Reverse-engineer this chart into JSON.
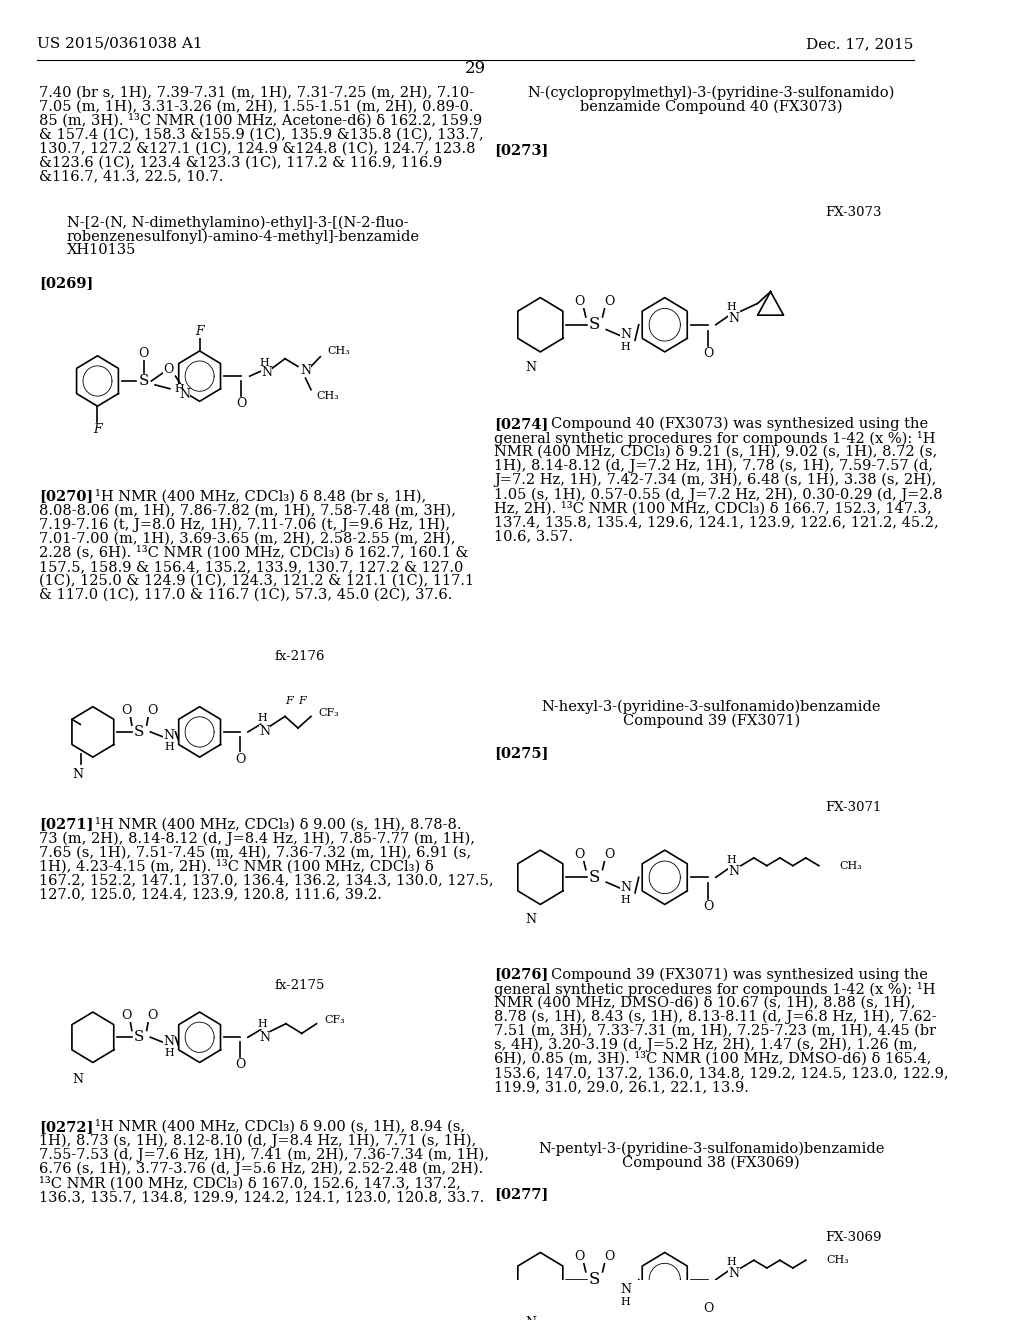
{
  "header_left": "US 2015/0361038 A1",
  "header_right": "Dec. 17, 2015",
  "page_number": "29",
  "background": "#ffffff",
  "top_left_text": "7.40 (br s, 1H), 7.39-7.31 (m, 1H), 7.31-7.25 (m, 2H), 7.10-\n7.05 (m, 1H), 3.31-3.26 (m, 2H), 1.55-1.51 (m, 2H), 0.89-0.\n85 (m, 3H). ¹³C NMR (100 MHz, Acetone-d6) δ 162.2, 159.9\n& 157.4 (1C), 158.3 &155.9 (1C), 135.9 &135.8 (1C), 133.7,\n130.7, 127.2 &127.1 (1C), 124.9 &124.8 (1C), 124.7, 123.8\n&123.6 (1C), 123.4 &123.3 (1C), 117.2 & 116.9, 116.9\n&116.7, 41.3, 22.5, 10.7.",
  "comp_title_0269": "N-[2-(N, N-dimethylamino)-ethyl]-3-[(N-2-fluo-\nrobenzenesulfonyl)-amino-4-methyl]-benzamide\nXH10135",
  "ref_0269": "[0269]",
  "ref_0270": "[0270]",
  "text_0270": "¹H NMR (400 MHz, CDCl₃) δ 8.48 (br s, 1H),\n8.08-8.06 (m, 1H), 7.86-7.82 (m, 1H), 7.58-7.48 (m, 3H),\n7.19-7.16 (t, J=8.0 Hz, 1H), 7.11-7.06 (t, J=9.6 Hz, 1H),\n7.01-7.00 (m, 1H), 3.69-3.65 (m, 2H), 2.58-2.55 (m, 2H),\n2.28 (s, 6H). ¹³C NMR (100 MHz, CDCl₃) δ 162.7, 160.1 &\n157.5, 158.9 & 156.4, 135.2, 133.9, 130.7, 127.2 & 127.0\n(1C), 125.0 & 124.9 (1C), 124.3, 121.2 & 121.1 (1C), 117.1\n& 117.0 (1C), 117.0 & 116.7 (1C), 57.3, 45.0 (2C), 37.6.",
  "label_fx2176": "fx-2176",
  "ref_0271": "[0271]",
  "text_0271": "¹H NMR (400 MHz, CDCl₃) δ 9.00 (s, 1H), 8.78-8.\n73 (m, 2H), 8.14-8.12 (d, J=8.4 Hz, 1H), 7.85-7.77 (m, 1H),\n7.65 (s, 1H), 7.51-7.45 (m, 4H), 7.36-7.32 (m, 1H), 6.91 (s,\n1H), 4.23-4.15 (m, 2H). ¹³C NMR (100 MHz, CDCl₃) δ\n167.2, 152.2, 147.1, 137.0, 136.4, 136.2, 134.3, 130.0, 127.5,\n127.0, 125.0, 124.4, 123.9, 120.8, 111.6, 39.2.",
  "label_fx2175": "fx-2175",
  "ref_0272": "[0272]",
  "text_0272": "¹H NMR (400 MHz, CDCl₃) δ 9.00 (s, 1H), 8.94 (s,\n1H), 8.73 (s, 1H), 8.12-8.10 (d, J=8.4 Hz, 1H), 7.71 (s, 1H),\n7.55-7.53 (d, J=7.6 Hz, 1H), 7.41 (m, 2H), 7.36-7.34 (m, 1H),\n6.76 (s, 1H), 3.77-3.76 (d, J=5.6 Hz, 2H), 2.52-2.48 (m, 2H).\n¹³C NMR (100 MHz, CDCl₃) δ 167.0, 152.6, 147.3, 137.2,\n136.3, 135.7, 134.8, 129.9, 124.2, 124.1, 123.0, 120.8, 33.7.",
  "comp_title_0273": "N-(cyclopropylmethyl)-3-(pyridine-3-sulfonamido)\nbenzamide Compound 40 (FX3073)",
  "ref_0273": "[0273]",
  "label_fx3073": "FX-3073",
  "ref_0274": "[0274]",
  "text_0274": "Compound 40 (FX3073) was synthesized using the\ngeneral synthetic procedures for compounds 1-42 (x %): ¹H\nNMR (400 MHz, CDCl₃) δ 9.21 (s, 1H), 9.02 (s, 1H), 8.72 (s,\n1H), 8.14-8.12 (d, J=7.2 Hz, 1H), 7.78 (s, 1H), 7.59-7.57 (d,\nJ=7.2 Hz, 1H), 7.42-7.34 (m, 3H), 6.48 (s, 1H), 3.38 (s, 2H),\n1.05 (s, 1H), 0.57-0.55 (d, J=7.2 Hz, 2H), 0.30-0.29 (d, J=2.8\nHz, 2H). ¹³C NMR (100 MHz, CDCl₃) δ 166.7, 152.3, 147.3,\n137.4, 135.8, 135.4, 129.6, 124.1, 123.9, 122.6, 121.2, 45.2,\n10.6, 3.57.",
  "comp_title_0275": "N-hexyl-3-(pyridine-3-sulfonamido)benzamide\nCompound 39 (FX3071)",
  "ref_0275": "[0275]",
  "label_fx3071": "FX-3071",
  "ref_0276": "[0276]",
  "text_0276": "Compound 39 (FX3071) was synthesized using the\ngeneral synthetic procedures for compounds 1-42 (x %): ¹H\nNMR (400 MHz, DMSO-d6) δ 10.67 (s, 1H), 8.88 (s, 1H),\n8.78 (s, 1H), 8.43 (s, 1H), 8.13-8.11 (d, J=6.8 Hz, 1H), 7.62-\n7.51 (m, 3H), 7.33-7.31 (m, 1H), 7.25-7.23 (m, 1H), 4.45 (br\ns, 4H), 3.20-3.19 (d, J=5.2 Hz, 2H), 1.47 (s, 2H), 1.26 (m,\n6H), 0.85 (m, 3H). ¹³C NMR (100 MHz, DMSO-d6) δ 165.4,\n153.6, 147.0, 137.2, 136.0, 134.8, 129.2, 124.5, 123.0, 122.9,\n119.9, 31.0, 29.0, 26.1, 22.1, 13.9.",
  "comp_title_0277": "N-pentyl-3-(pyridine-3-sulfonamido)benzamide\nCompound 38 (FX3069)",
  "ref_0277": "[0277]",
  "label_fx3069": "FX-3069"
}
